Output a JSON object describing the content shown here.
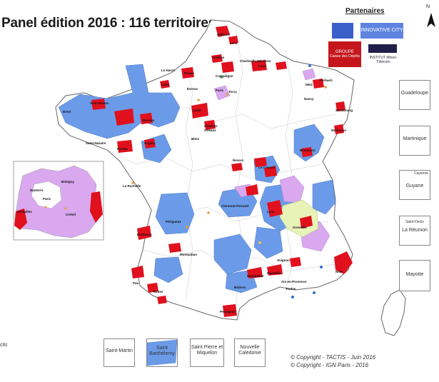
{
  "title": "Panel édition 2016 : 116 territoires",
  "north_label": "N",
  "partners": {
    "heading": "Partenaires",
    "logos": [
      {
        "name": "innovative-city",
        "text": "INNOVATIVE CITY"
      },
      {
        "name": "groupe-caisse-des-depots",
        "text_top": "GROUPE",
        "text_bottom": "Caisse des Dépôts"
      },
      {
        "name": "institut-mines-telecom",
        "text": "INSTITUT Mines-Télécom"
      }
    ]
  },
  "overseas_insets": [
    {
      "label": "Guadeloupe"
    },
    {
      "label": "Martinique"
    },
    {
      "label": "Guyane",
      "city": "Cayenne"
    },
    {
      "label": "La Réunion",
      "city": "Saint-Denis"
    },
    {
      "label": "Mayotte"
    }
  ],
  "bottom_insets": [
    {
      "label": "Saint-Martin"
    },
    {
      "label": "Saint Barthélemy"
    },
    {
      "label": "Saint Pierre et Miquelon"
    },
    {
      "label": "Nouvelle Calédonie"
    }
  ],
  "paris_inset": {
    "cities": [
      "Nanterre",
      "Bobigny",
      "Paris",
      "Versailles",
      "Créteil"
    ]
  },
  "cities": [
    "Béthune",
    "Lens",
    "Amiens",
    "Charleville-Mézières",
    "Compiègne",
    "Le Havre",
    "Rouen",
    "Laon",
    "Caen",
    "Évreux",
    "Paris",
    "Torcy",
    "Metz",
    "Forbach",
    "Nancy",
    "Strasbourg",
    "Saint-Brieuc",
    "Brest",
    "Rennes",
    "Laval",
    "Chartres",
    "Mulhouse",
    "Blois",
    "Orléans",
    "Besançon",
    "Saint-Nazaire",
    "Nantes",
    "Angers",
    "Nevers",
    "Le Creusot",
    "La Rochelle",
    "Clermont-Ferrand",
    "Lyon",
    "Grenoble",
    "Périgueux",
    "Bordeaux",
    "Montauban",
    "Avignon",
    "Nice",
    "Montpellier",
    "Aix-en-Provence",
    "Toulon",
    "Pau",
    "Tarbes",
    "Béziers",
    "Perpignan",
    "Marseille"
  ],
  "source_note": "ctis",
  "copyright": [
    "© Copyright - TACTIS - Juin 2016",
    "© Copyright - IGN Paris - 2016"
  ],
  "colors": {
    "region_blue": "#6b9be8",
    "urban_red": "#e0101d",
    "rural_lilac": "#d9a8ef",
    "alpine_green": "#e8f3b8",
    "background": "#ffffff"
  }
}
